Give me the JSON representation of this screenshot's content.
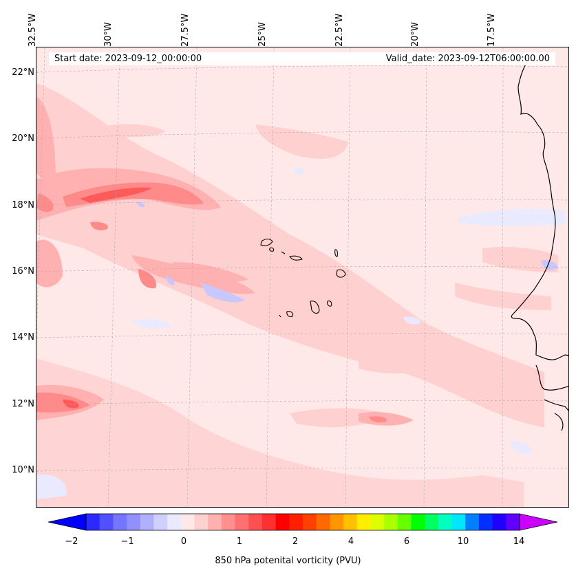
{
  "map": {
    "start_date": "Start date: 2023-09-12_00:00:00",
    "valid_date": "Valid_date: 2023-09-12T06:00:00.00",
    "lon_labels": [
      "32.5°W",
      "30°W",
      "27.5°W",
      "25°W",
      "22.5°W",
      "20°W",
      "17.5°W"
    ],
    "lat_labels": [
      "22°N",
      "20°N",
      "18°N",
      "16°N",
      "14°N",
      "12°N",
      "10°N"
    ],
    "land_color": "#ffe8e8",
    "coast_color": "#000000"
  },
  "colorbar": {
    "title": "850 hPa potenital vorticity (PVU)",
    "tick_labels": [
      "−2",
      "−1",
      "0",
      "1",
      "2",
      "4",
      "6",
      "10",
      "14"
    ],
    "colors": [
      "#0000ff",
      "#2a2aff",
      "#5050ff",
      "#7575ff",
      "#9090ff",
      "#b0b0ff",
      "#d0d0ff",
      "#eaeaff",
      "#ffe8e8",
      "#ffd0d0",
      "#ffb0b0",
      "#ff9090",
      "#ff7070",
      "#ff5050",
      "#ff3030",
      "#ff0000",
      "#ff2000",
      "#ff4000",
      "#ff6a00",
      "#ff9500",
      "#ffc000",
      "#ffee00",
      "#ddff00",
      "#aaff00",
      "#66ff00",
      "#00ff00",
      "#00ff60",
      "#00ffc0",
      "#00e6ff",
      "#0080ff",
      "#0030ff",
      "#2000ff",
      "#6000ff",
      "#a000ff"
    ]
  }
}
